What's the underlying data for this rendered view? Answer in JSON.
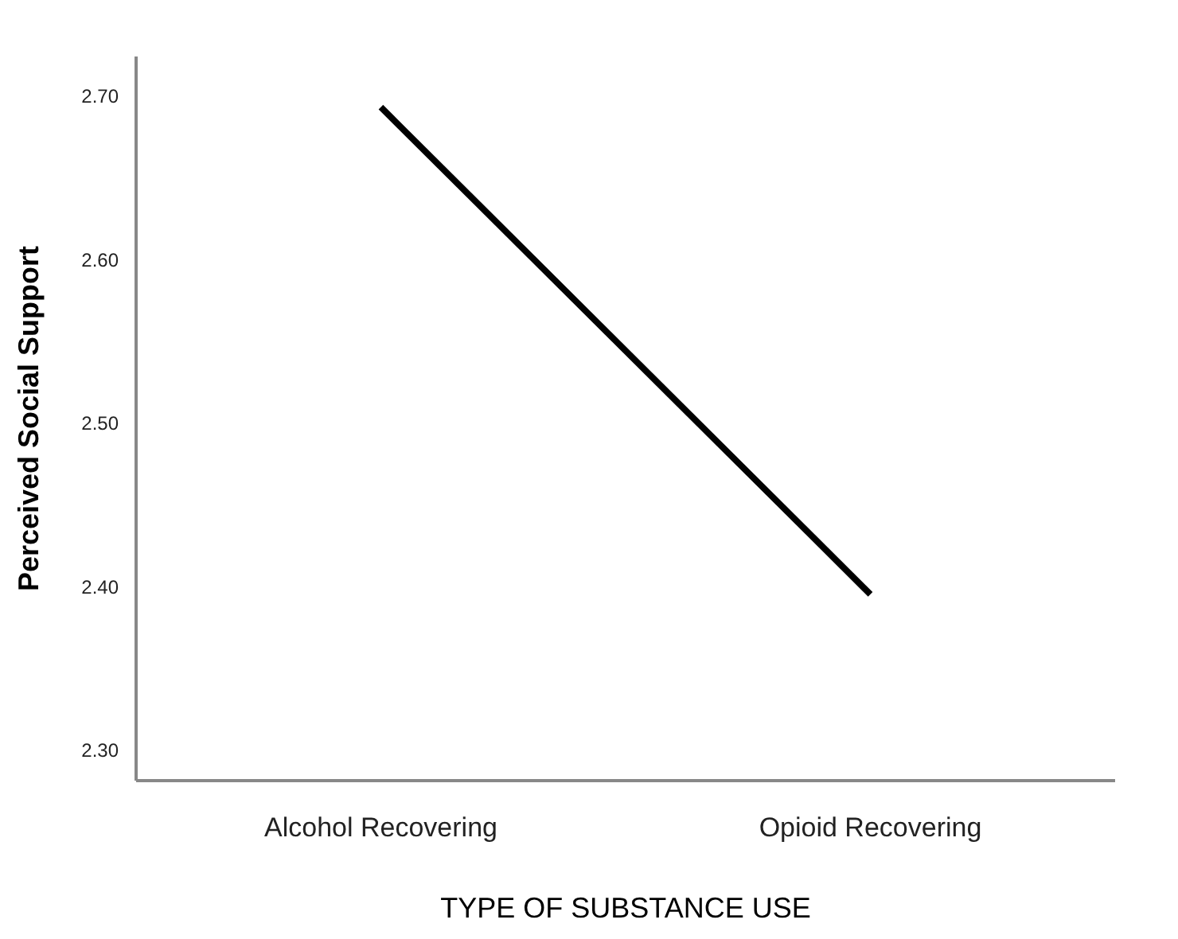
{
  "chart_data": {
    "type": "line",
    "xlabel": "TYPE OF SUBSTANCE USE",
    "ylabel": "Perceived Social Support",
    "categories": [
      "Alcohol Recovering",
      "Opioid Recovering"
    ],
    "series": [
      {
        "color": "#000000",
        "values": [
          2.693,
          2.395
        ]
      }
    ],
    "ylim": [
      2.281,
      2.724
    ],
    "yticks": [
      {
        "value": 2.3,
        "label": "2.30"
      },
      {
        "value": 2.4,
        "label": "2.40"
      },
      {
        "value": 2.5,
        "label": "2.50"
      },
      {
        "value": 2.6,
        "label": "2.60"
      },
      {
        "value": 2.7,
        "label": "2.70"
      }
    ],
    "grid": false,
    "marker": "none",
    "line_style": "solid"
  }
}
